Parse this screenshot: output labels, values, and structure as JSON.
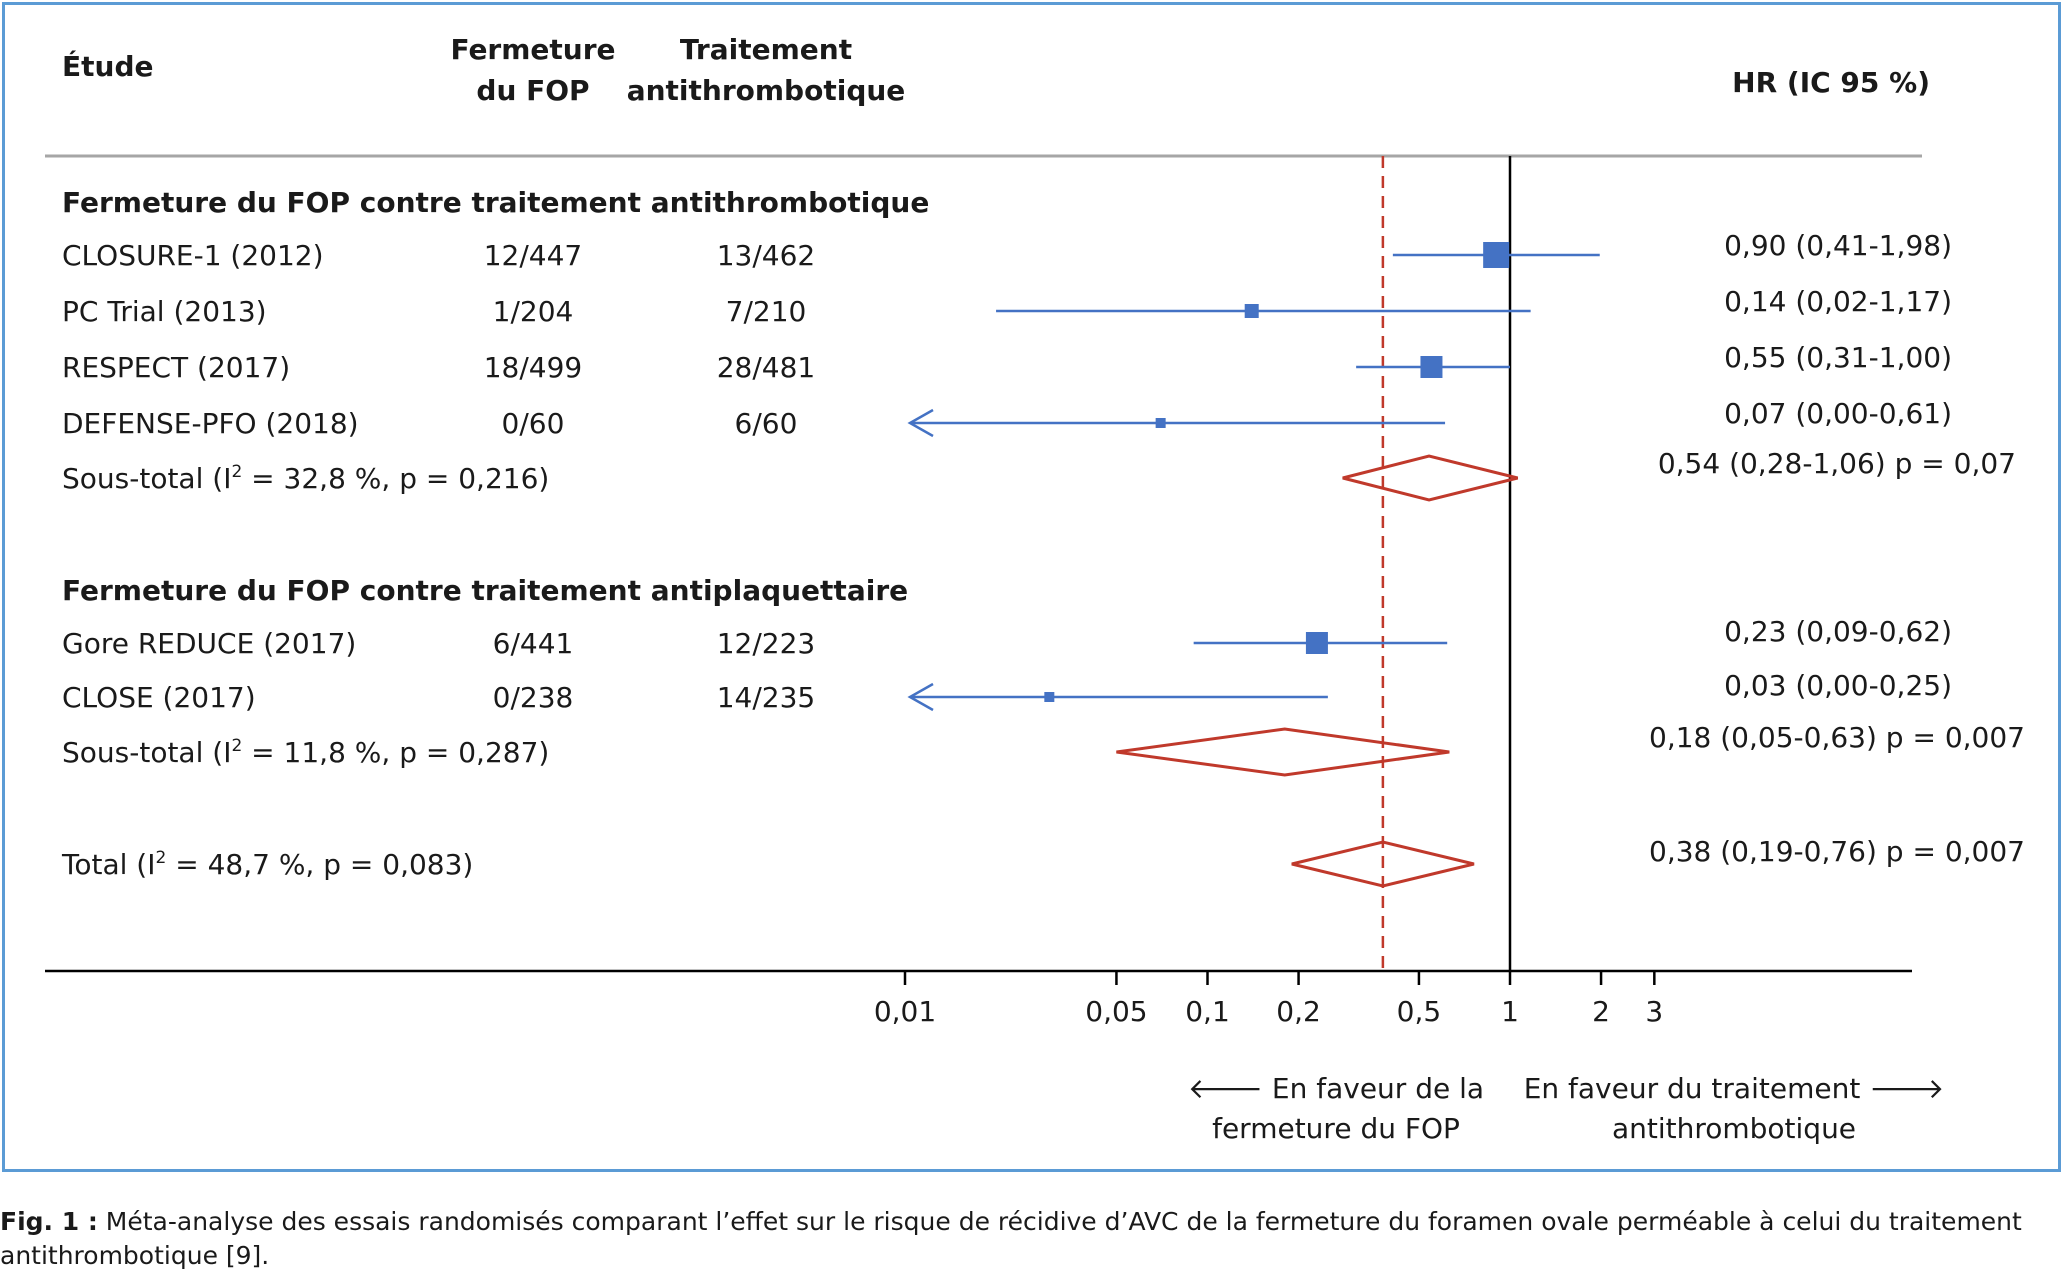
{
  "headers": {
    "study": "Étude",
    "closure_line1": "Fermeture",
    "closure_line2": "du FOP",
    "treatment_line1": "Traitement",
    "treatment_line2": "antithrombotique",
    "hr": "HR (IC 95 %)"
  },
  "colors": {
    "point": "#4472c4",
    "diamond": "#c0392b",
    "refline": "#c0392b",
    "axis": "#000000",
    "header_rule": "#a6a6a6",
    "frame": "#5b9bd5"
  },
  "chart_data": {
    "type": "forest",
    "x_scale": "log",
    "null_line": 1,
    "pooled_line": 0.38,
    "xticks": [
      {
        "value": 0.01,
        "label": "0,01"
      },
      {
        "value": 0.05,
        "label": "0,05"
      },
      {
        "value": 0.1,
        "label": "0,1"
      },
      {
        "value": 0.2,
        "label": "0,2"
      },
      {
        "value": 0.5,
        "label": "0,5"
      },
      {
        "value": 1,
        "label": "1"
      },
      {
        "value": 2,
        "label": "2"
      },
      {
        "value": 3,
        "label": "3"
      }
    ],
    "favours_left_line1": "🡐 En faveur de la",
    "favours_left_line2": "fermeture du FOP",
    "favours_right_line1": "En faveur du traitement 🡒",
    "favours_right_line2": "antithrombotique",
    "groups": [
      {
        "title": "Fermeture du FOP contre traitement antithrombotique",
        "studies": [
          {
            "name": "CLOSURE-1 (2012)",
            "closure": "12/447",
            "treatment": "13/462",
            "hr_text": "0,90 (0,41-1,98)",
            "hr": 0.9,
            "lo": 0.41,
            "hi": 1.98,
            "weight": "large"
          },
          {
            "name": "PC Trial (2013)",
            "closure": "1/204",
            "treatment": "7/210",
            "hr_text": "0,14 (0,02-1,17)",
            "hr": 0.14,
            "lo": 0.02,
            "hi": 1.17,
            "weight": "small"
          },
          {
            "name": "RESPECT (2017)",
            "closure": "18/499",
            "treatment": "28/481",
            "hr_text": "0,55 (0,31-1,00)",
            "hr": 0.55,
            "lo": 0.31,
            "hi": 1.0,
            "weight": "medium"
          },
          {
            "name": "DEFENSE-PFO (2018)",
            "closure": "0/60",
            "treatment": "6/60",
            "hr_text": "0,07 (0,00-0,61)",
            "hr": 0.07,
            "lo": 0.0,
            "hi": 0.61,
            "weight": "tiny",
            "arrow_left": true
          }
        ],
        "subtotal": {
          "label_prefix": "Sous-total (I",
          "sup": "2",
          "label_suffix": " = 32,8 %, p = 0,216)",
          "hr_text": "0,54 (0,28-1,06) p = 0,07",
          "hr": 0.54,
          "lo": 0.28,
          "hi": 1.06
        }
      },
      {
        "title": "Fermeture du FOP contre traitement antiplaquettaire",
        "studies": [
          {
            "name": "Gore REDUCE (2017)",
            "closure": "6/441",
            "treatment": "12/223",
            "hr_text": "0,23 (0,09-0,62)",
            "hr": 0.23,
            "lo": 0.09,
            "hi": 0.62,
            "weight": "medium"
          },
          {
            "name": "CLOSE (2017)",
            "closure": "0/238",
            "treatment": "14/235",
            "hr_text": "0,03 (0,00-0,25)",
            "hr": 0.03,
            "lo": 0.0,
            "hi": 0.25,
            "weight": "tiny",
            "arrow_left": true
          }
        ],
        "subtotal": {
          "label_prefix": "Sous-total (I",
          "sup": "2",
          "label_suffix": " = 11,8 %, p = 0,287)",
          "hr_text": "0,18 (0,05-0,63) p = 0,007",
          "hr": 0.18,
          "lo": 0.05,
          "hi": 0.63
        }
      }
    ],
    "total": {
      "label_prefix": "Total (I",
      "sup": "2",
      "label_suffix": " = 48,7 %, p = 0,083)",
      "hr_text": "0,38 (0,19-0,76) p = 0,007",
      "hr": 0.38,
      "lo": 0.19,
      "hi": 0.76
    }
  },
  "caption": {
    "label": "Fig. 1 :",
    "text": " Méta-analyse des essais randomisés comparant l’effet sur le risque de récidive d’AVC de la fermeture du foramen ovale perméable à celui du traitement anti­thrombotique [9]."
  }
}
